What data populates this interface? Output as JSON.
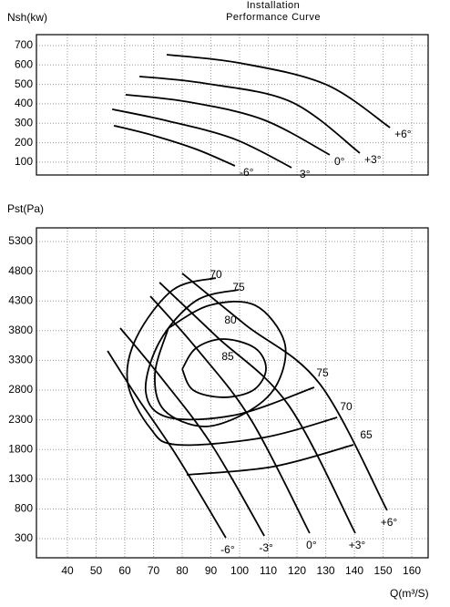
{
  "chart_data": [
    {
      "type": "line",
      "title": "Installation Performance Curve",
      "ylabel": "Nsh(kw)",
      "color": "#000000",
      "grid": true,
      "xlim": [
        29.2,
        165.7
      ],
      "ylim": [
        34,
        756
      ],
      "yticks": [
        100,
        200,
        300,
        400,
        500,
        600,
        700
      ],
      "series": [
        {
          "name": "-6°",
          "x": [
            56.2,
            70,
            85,
            98.4
          ],
          "values": [
            288,
            237,
            166,
            81
          ]
        },
        {
          "name": "-3°",
          "x": [
            55.6,
            75,
            98,
            118.1
          ],
          "values": [
            372,
            312,
            220,
            72
          ]
        },
        {
          "name": "0°",
          "x": [
            60.3,
            82,
            108,
            131.4
          ],
          "values": [
            447,
            410,
            320,
            138
          ]
        },
        {
          "name": "+3°",
          "x": [
            65.1,
            88,
            118,
            141.9
          ],
          "values": [
            541,
            505,
            410,
            147
          ]
        },
        {
          "name": "+6°",
          "x": [
            74.6,
            100,
            130,
            152.4
          ],
          "values": [
            653,
            610,
            500,
            278
          ]
        }
      ]
    },
    {
      "type": "line",
      "ylabel": "Pst(Pa)",
      "xlabel": "Q(m³/S)",
      "color": "#000000",
      "grid": true,
      "xlim": [
        29.2,
        165.7
      ],
      "ylim": [
        -22,
        5530
      ],
      "xticks": [
        40,
        50,
        60,
        70,
        80,
        90,
        100,
        110,
        120,
        130,
        140,
        150,
        160
      ],
      "yticks": [
        300,
        800,
        1300,
        1800,
        2300,
        2800,
        3300,
        3800,
        4300,
        4800,
        5300
      ],
      "series": [
        {
          "name": "-6°",
          "x": [
            54.0,
            64,
            78,
            95.2
          ],
          "values": [
            3460,
            2700,
            1700,
            315
          ]
        },
        {
          "name": "-3°",
          "x": [
            58.4,
            72,
            90,
            108.6
          ],
          "values": [
            3843,
            3050,
            1900,
            346
          ]
        },
        {
          "name": "0°",
          "x": [
            68.9,
            85,
            104,
            124.4
          ],
          "values": [
            4380,
            3500,
            2300,
            392
          ]
        },
        {
          "name": "+3°",
          "x": [
            72.1,
            92,
            117,
            140.3
          ],
          "values": [
            4611,
            3700,
            2550,
            392
          ]
        },
        {
          "name": "+6°",
          "x": [
            80,
            102,
            128,
            151.4
          ],
          "values": [
            4764,
            3900,
            2900,
            776
          ]
        }
      ],
      "contours": [
        {
          "name": "85",
          "x": [
            80.0,
            84.8,
            94.3,
            105.4,
            109.2,
            104.8,
            94.3,
            83.8,
            80.0
          ],
          "values": [
            3153,
            3506,
            3659,
            3506,
            3153,
            2800,
            2678,
            2800,
            3153
          ]
        },
        {
          "name": "80",
          "x": [
            75.2,
            89.5,
            105.4,
            115.6,
            113.3,
            103.8,
            87.9,
            73.7,
            70.5,
            75.2
          ],
          "values": [
            3844,
            4227,
            4227,
            3613,
            2923,
            2463,
            2187,
            2463,
            3077,
            3844
          ]
        },
        {
          "name": "75",
          "x": [
            99.7,
            84.8,
            72.1,
            67.3,
            75.2,
            99.0,
            126.0
          ],
          "values": [
            4488,
            4304,
            3613,
            2770,
            2340,
            2386,
            2846
          ]
        },
        {
          "name": "70",
          "x": [
            91.7,
            76.8,
            64.1,
            61.0,
            68.9,
            78.4,
            108.6,
            134.0
          ],
          "values": [
            4687,
            4488,
            3690,
            2923,
            2156,
            1880,
            2003,
            2340
          ]
        },
        {
          "name": "65",
          "x": [
            81.6,
            111.7,
            139.7
          ],
          "values": [
            1374,
            1512,
            1880
          ]
        }
      ]
    }
  ]
}
